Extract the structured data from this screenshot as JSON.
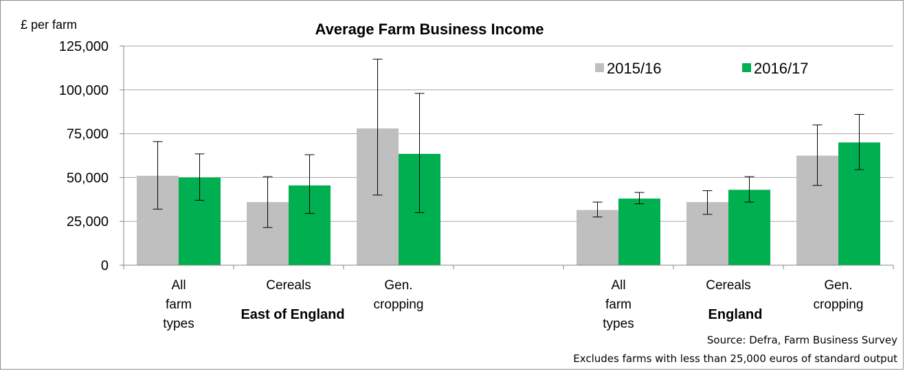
{
  "chart_data": {
    "type": "bar",
    "title": "Average Farm Business Income",
    "ylabel": "£ per farm",
    "ylim": [
      0,
      125000
    ],
    "yticks": [
      "0",
      "25,000",
      "50,000",
      "75,000",
      "100,000",
      "125,000"
    ],
    "ytick_values": [
      0,
      25000,
      50000,
      75000,
      100000,
      125000
    ],
    "grid": true,
    "legend_position": "top-right",
    "groups": [
      {
        "name": "East of England",
        "categories": [
          [
            "All",
            "farm",
            "types"
          ],
          [
            "Cereals"
          ],
          [
            "Gen.",
            "cropping"
          ]
        ]
      },
      {
        "name": "England",
        "categories": [
          [
            "All",
            "farm",
            "types"
          ],
          [
            "Cereals"
          ],
          [
            "Gen.",
            "cropping"
          ]
        ]
      }
    ],
    "series": [
      {
        "name": "2015/16",
        "color": "#bfbfbf",
        "values": [
          51000,
          36000,
          78000,
          31500,
          36000,
          62500
        ],
        "error_low": [
          32000,
          21500,
          40000,
          27500,
          29000,
          45500
        ],
        "error_high": [
          70500,
          50500,
          117500,
          36000,
          42500,
          80000
        ]
      },
      {
        "name": "2016/17",
        "color": "#00b050",
        "values": [
          50000,
          45500,
          63500,
          38000,
          43000,
          70000
        ],
        "error_low": [
          37000,
          29500,
          30000,
          35000,
          36000,
          54500
        ],
        "error_high": [
          63500,
          63000,
          98000,
          41500,
          50500,
          86000
        ]
      }
    ],
    "notes": [
      "Source: Defra, Farm Business Survey",
      "Excludes farms with less than 25,000 euros of standard output"
    ]
  }
}
